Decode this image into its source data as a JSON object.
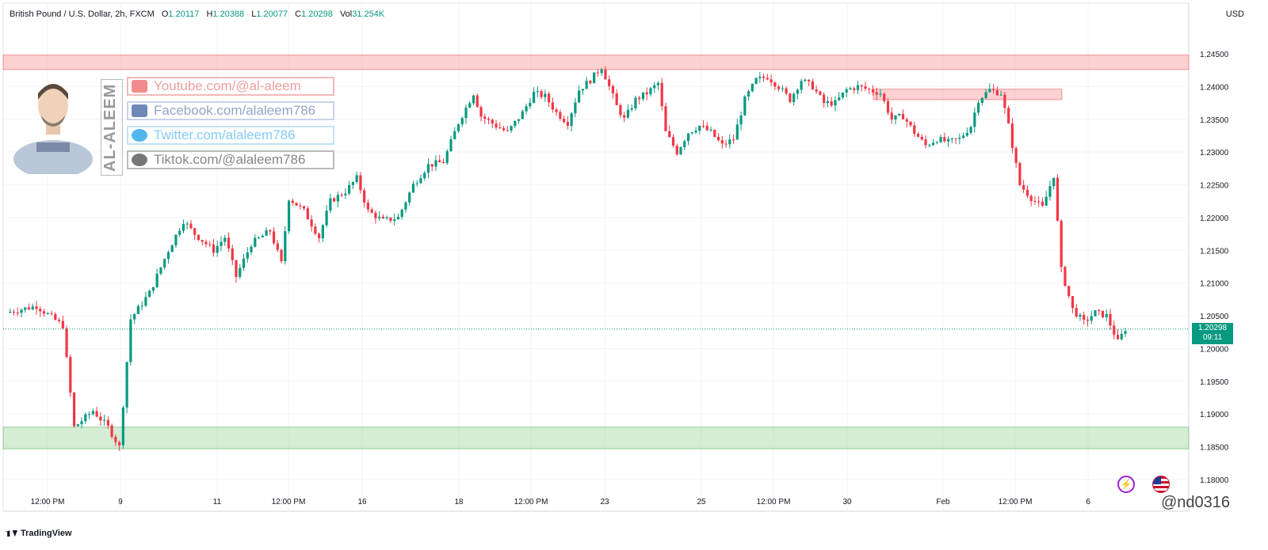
{
  "header": {
    "symbol": "British Pound / U.S. Dollar, 2h, FXCM",
    "open_label": "O",
    "open": "1.20117",
    "high_label": "H",
    "high": "1.20388",
    "low_label": "L",
    "low": "1.20077",
    "close_label": "C",
    "close": "1.20298",
    "vol_label": "Vol",
    "vol": "31.254K"
  },
  "currency_label": "USD",
  "last_price": {
    "price": "1.20298",
    "countdown": "09:11"
  },
  "branding": {
    "name": "AL-ALEEM",
    "socials": [
      {
        "icon": "youtube-icon",
        "text": "Youtube.com/@al-aleem",
        "color": "#f28b8b"
      },
      {
        "icon": "facebook-icon",
        "text": "Facebook.com/alaleem786",
        "color": "#6f88b8"
      },
      {
        "icon": "twitter-icon",
        "text": "Twitter.com/alaleem786",
        "color": "#52b7ec"
      },
      {
        "icon": "tiktok-icon",
        "text": "Tiktok.com/@alaleem786",
        "color": "#333333"
      }
    ]
  },
  "footer": {
    "logo_text": "TradingView",
    "watermark": "@nd0316"
  },
  "colors": {
    "up": "#089981",
    "down": "#f23645",
    "resistance": "#f7a3a3",
    "support": "#a9dba9",
    "grid": "#f0f3fa"
  },
  "chart_data": {
    "type": "candlestick",
    "ylim": [
      1.1775,
      1.25
    ],
    "y_ticks": [
      "1.24500",
      "1.24000",
      "1.23500",
      "1.23000",
      "1.22500",
      "1.22000",
      "1.21500",
      "1.21000",
      "1.20500",
      "1.20000",
      "1.19500",
      "1.19000",
      "1.18500",
      "1.18000"
    ],
    "x_ticks": [
      "12:00 PM",
      "9",
      "11",
      "12:00 PM",
      "16",
      "18",
      "12:00 PM",
      "23",
      "25",
      "12:00 PM",
      "30",
      "Feb",
      "12:00 PM",
      "6"
    ],
    "zones": [
      {
        "name": "resistance-zone",
        "y0": 1.2426,
        "y1": 1.2448,
        "x0": 0,
        "x1": 1
      },
      {
        "name": "resistance-zone-small",
        "y0": 1.238,
        "y1": 1.2396,
        "x0": 0.734,
        "x1": 0.893
      },
      {
        "name": "support-zone",
        "y0": 1.1847,
        "y1": 1.188,
        "x0": 0,
        "x1": 1
      }
    ],
    "close_path": [
      [
        0,
        1.2055
      ],
      [
        8,
        1.2065
      ],
      [
        15,
        1.2035
      ],
      [
        18,
        1.188
      ],
      [
        23,
        1.1905
      ],
      [
        27,
        1.188
      ],
      [
        30,
        1.185
      ],
      [
        33,
        1.2045
      ],
      [
        38,
        1.2085
      ],
      [
        43,
        1.215
      ],
      [
        47,
        1.2195
      ],
      [
        50,
        1.2175
      ],
      [
        55,
        1.215
      ],
      [
        58,
        1.217
      ],
      [
        61,
        1.211
      ],
      [
        65,
        1.216
      ],
      [
        70,
        1.218
      ],
      [
        73,
        1.213
      ],
      [
        75,
        1.223
      ],
      [
        79,
        1.221
      ],
      [
        83,
        1.217
      ],
      [
        86,
        1.2225
      ],
      [
        90,
        1.224
      ],
      [
        93,
        1.226
      ],
      [
        96,
        1.221
      ],
      [
        100,
        1.2195
      ],
      [
        104,
        1.22
      ],
      [
        108,
        1.225
      ],
      [
        112,
        1.228
      ],
      [
        116,
        1.2285
      ],
      [
        120,
        1.2345
      ],
      [
        124,
        1.239
      ],
      [
        126,
        1.2355
      ],
      [
        130,
        1.234
      ],
      [
        133,
        1.233
      ],
      [
        137,
        1.236
      ],
      [
        140,
        1.239
      ],
      [
        143,
        1.2385
      ],
      [
        146,
        1.236
      ],
      [
        149,
        1.2345
      ],
      [
        152,
        1.2395
      ],
      [
        155,
        1.241
      ],
      [
        158,
        1.243
      ],
      [
        160,
        1.24
      ],
      [
        162,
        1.237
      ],
      [
        164,
        1.235
      ],
      [
        167,
        1.238
      ],
      [
        170,
        1.239
      ],
      [
        173,
        1.2405
      ],
      [
        175,
        1.233
      ],
      [
        178,
        1.23
      ],
      [
        181,
        1.233
      ],
      [
        184,
        1.234
      ],
      [
        187,
        1.233
      ],
      [
        190,
        1.231
      ],
      [
        193,
        1.232
      ],
      [
        196,
        1.238
      ],
      [
        199,
        1.241
      ],
      [
        202,
        1.2415
      ],
      [
        205,
        1.24
      ],
      [
        208,
        1.238
      ],
      [
        211,
        1.241
      ],
      [
        214,
        1.24
      ],
      [
        217,
        1.2375
      ],
      [
        220,
        1.2375
      ],
      [
        223,
        1.2395
      ],
      [
        226,
        1.24
      ],
      [
        229,
        1.2395
      ],
      [
        232,
        1.239
      ],
      [
        235,
        1.235
      ],
      [
        238,
        1.2355
      ],
      [
        241,
        1.233
      ],
      [
        244,
        1.231
      ],
      [
        247,
        1.232
      ],
      [
        250,
        1.2315
      ],
      [
        253,
        1.232
      ],
      [
        256,
        1.234
      ],
      [
        258,
        1.238
      ],
      [
        261,
        1.2395
      ],
      [
        264,
        1.239
      ],
      [
        266,
        1.234
      ],
      [
        269,
        1.225
      ],
      [
        272,
        1.223
      ],
      [
        275,
        1.2215
      ],
      [
        278,
        1.2265
      ],
      [
        280,
        1.212
      ],
      [
        283,
        1.206
      ],
      [
        286,
        1.204
      ],
      [
        289,
        1.2055
      ],
      [
        292,
        1.205
      ],
      [
        295,
        1.201
      ],
      [
        297,
        1.203
      ]
    ],
    "current_price": 1.20298
  }
}
